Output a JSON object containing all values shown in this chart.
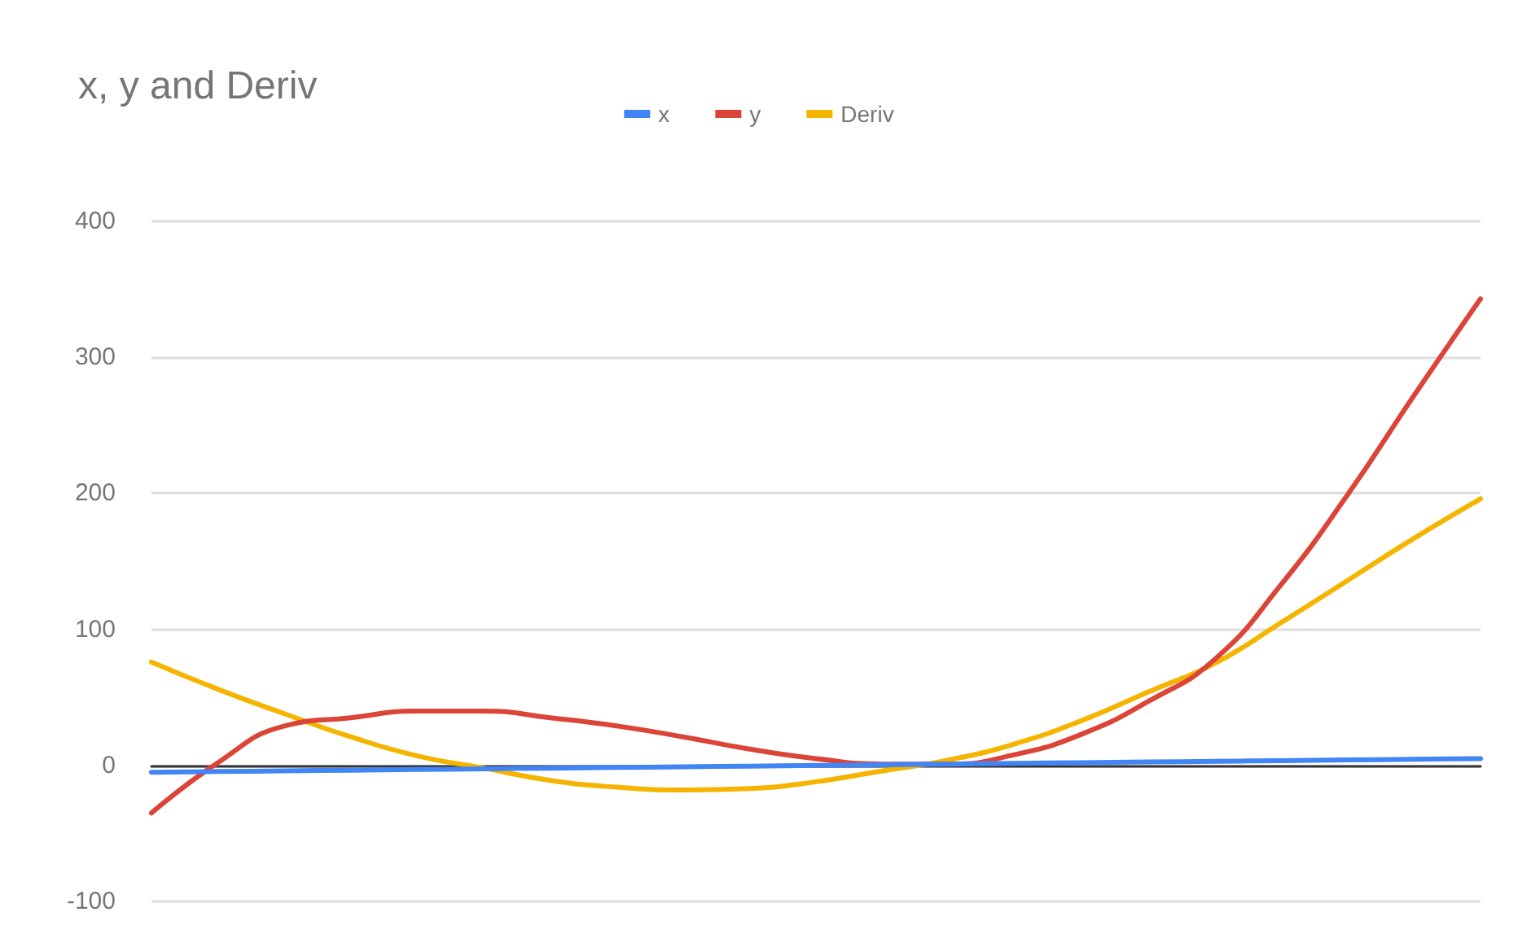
{
  "chart_data": {
    "type": "line",
    "title": "x, y and Deriv",
    "categories": [
      null,
      null,
      null,
      null,
      null,
      null,
      null,
      null,
      null,
      null,
      null,
      null,
      null,
      null,
      null,
      null,
      null,
      null,
      null,
      null,
      null
    ],
    "series": [
      {
        "name": "x",
        "color": "#4285f4",
        "values": [
          -5,
          -4.5,
          -4,
          -3.5,
          -3,
          -2.5,
          -2,
          -1.5,
          -1,
          -0.5,
          0,
          0.5,
          1,
          1.5,
          2,
          2.5,
          3,
          3.5,
          4,
          4.5,
          5
        ]
      },
      {
        "name": "y",
        "color": "#db4437",
        "values": [
          -35,
          2,
          29,
          35,
          40,
          40,
          35,
          29,
          21,
          12,
          5,
          1,
          1,
          8,
          23,
          47,
          78,
          133,
          199,
          272,
          343
        ]
      },
      {
        "name": "Deriv",
        "color": "#f4b400",
        "values": [
          76,
          56,
          38,
          21,
          7,
          -2,
          -11,
          -16,
          -18,
          -17,
          -12,
          -4,
          4,
          16,
          33,
          54,
          75,
          105,
          136,
          167,
          196
        ]
      }
    ],
    "ylim": [
      -100,
      400
    ],
    "yticks": [
      -100,
      0,
      100,
      200,
      300,
      400
    ],
    "grid": "y",
    "legend": "top",
    "marker": "none",
    "line_style": "solid"
  }
}
